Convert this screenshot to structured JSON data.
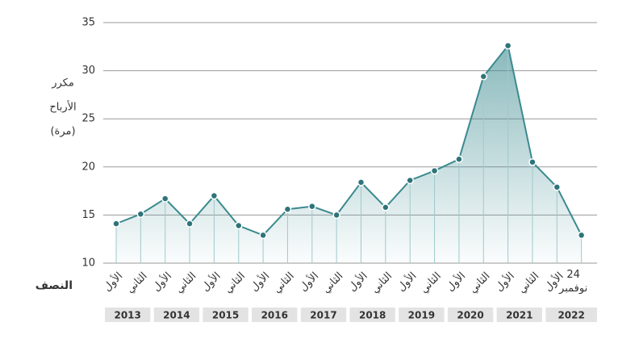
{
  "chart_data": {
    "type": "line",
    "y_label": [
      "مكرر",
      "الأرباح",
      "(مرة)"
    ],
    "x_label": "النصف",
    "categories": [
      "الأول",
      "الثاني",
      "الأول",
      "الثاني",
      "الأول",
      "الثاني",
      "الأول",
      "الثاني",
      "الأول",
      "الثاني",
      "الأول",
      "الثاني",
      "الأول",
      "الثاني",
      "الأول",
      "الثاني",
      "الأول",
      "الثاني",
      "الأول",
      "24 نوفمبر"
    ],
    "years": [
      "2013",
      "2014",
      "2015",
      "2016",
      "2017",
      "2018",
      "2019",
      "2020",
      "2021",
      "2022"
    ],
    "series": [
      {
        "name": "مكرر الأرباح",
        "color": "#3b8a8f",
        "values": [
          14.1,
          15.1,
          16.7,
          14.1,
          17.0,
          13.9,
          12.9,
          15.6,
          15.9,
          15.0,
          18.4,
          15.8,
          18.6,
          19.6,
          20.8,
          29.4,
          32.6,
          20.5,
          17.9,
          12.9
        ]
      }
    ],
    "ylim": [
      10,
      35
    ],
    "yticks": [
      10,
      15,
      20,
      25,
      30,
      35
    ],
    "grid": true
  }
}
